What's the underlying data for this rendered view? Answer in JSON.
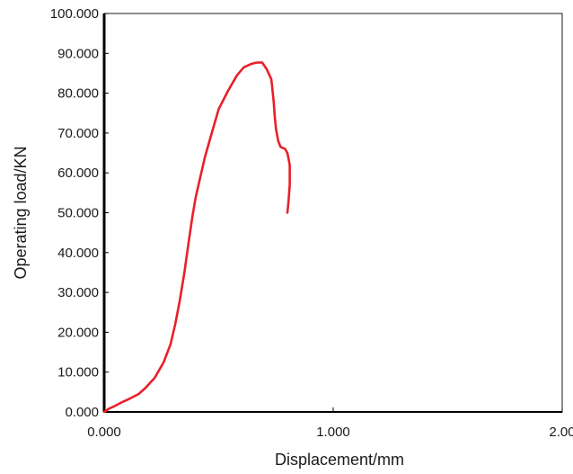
{
  "chart_data": {
    "type": "line",
    "title": "",
    "xlabel": "Displacement/mm",
    "ylabel": "Operating load/KN",
    "xlim": [
      0,
      2
    ],
    "ylim": [
      0,
      100
    ],
    "x_ticks": [
      0,
      1,
      2
    ],
    "y_ticks": [
      0,
      10,
      20,
      30,
      40,
      50,
      60,
      70,
      80,
      90,
      100
    ],
    "x_tick_labels": [
      "0.000",
      "1.000",
      "2.00"
    ],
    "y_tick_labels": [
      "0.000",
      "10.000",
      "20.000",
      "30.000",
      "40.000",
      "50.000",
      "60.000",
      "70.000",
      "80.000",
      "90.000",
      "100.000"
    ],
    "grid": false,
    "legend": "none",
    "series": [
      {
        "color": "#e8202a",
        "x": [
          0.0,
          0.02,
          0.05,
          0.08,
          0.11,
          0.15,
          0.18,
          0.22,
          0.26,
          0.29,
          0.31,
          0.33,
          0.35,
          0.37,
          0.385,
          0.4,
          0.42,
          0.44,
          0.47,
          0.5,
          0.54,
          0.58,
          0.61,
          0.64,
          0.66,
          0.67,
          0.69,
          0.71,
          0.73,
          0.74,
          0.745,
          0.75,
          0.76,
          0.77,
          0.79,
          0.8,
          0.81,
          0.81,
          0.805,
          0.8
        ],
        "y": [
          0.0,
          0.8,
          1.6,
          2.5,
          3.3,
          4.5,
          6.0,
          8.5,
          12.5,
          17.0,
          22.0,
          28.0,
          35.0,
          43.0,
          49.0,
          54.0,
          59.0,
          64.0,
          70.0,
          76.0,
          80.5,
          84.5,
          86.5,
          87.3,
          87.6,
          87.7,
          87.7,
          86.0,
          83.5,
          78.0,
          74.0,
          71.0,
          68.0,
          66.5,
          66.0,
          65.0,
          62.0,
          57.0,
          53.0,
          50.0
        ]
      }
    ]
  }
}
